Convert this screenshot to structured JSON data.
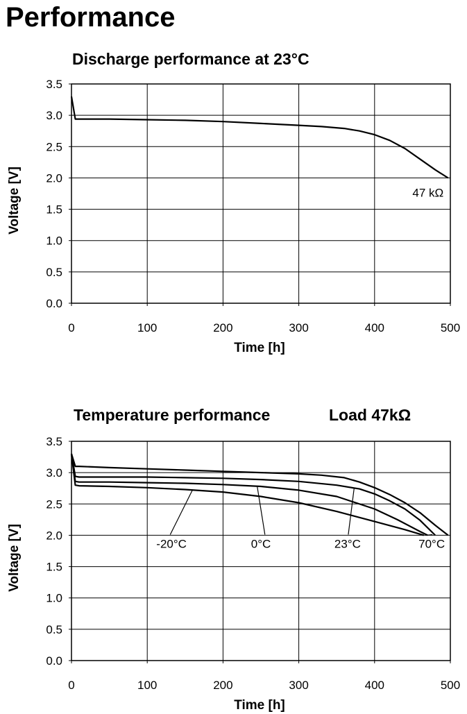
{
  "page": {
    "title": "Performance"
  },
  "chart_data": [
    {
      "type": "line",
      "title": "Discharge performance at 23°C",
      "xlabel": "Time [h]",
      "ylabel": "Voltage [V]",
      "xlim": [
        0,
        500
      ],
      "ylim": [
        0,
        3.5
      ],
      "xticks": [
        "0",
        "100",
        "200",
        "300",
        "400",
        "500"
      ],
      "yticks": [
        "0.0",
        "0.5",
        "1.0",
        "1.5",
        "2.0",
        "2.5",
        "3.0",
        "3.5"
      ],
      "grid": true,
      "series": [
        {
          "name": "47 kΩ",
          "x": [
            0,
            5,
            10,
            50,
            100,
            150,
            200,
            250,
            300,
            330,
            360,
            380,
            400,
            420,
            440,
            460,
            480,
            497
          ],
          "y": [
            3.3,
            2.94,
            2.94,
            2.94,
            2.93,
            2.92,
            2.9,
            2.87,
            2.84,
            2.82,
            2.79,
            2.75,
            2.69,
            2.6,
            2.47,
            2.3,
            2.13,
            2.0
          ]
        }
      ],
      "annotations": [
        {
          "text": "47 kΩ",
          "x": 450,
          "y": 1.7
        }
      ]
    },
    {
      "type": "line",
      "title": "Temperature performance",
      "subtitle": "Load 47kΩ",
      "xlabel": "Time [h]",
      "ylabel": "Voltage [V]",
      "xlim": [
        0,
        500
      ],
      "ylim": [
        0,
        3.5
      ],
      "xticks": [
        "0",
        "100",
        "200",
        "300",
        "400",
        "500"
      ],
      "yticks": [
        "0.0",
        "0.5",
        "1.0",
        "1.5",
        "2.0",
        "2.5",
        "3.0",
        "3.5"
      ],
      "grid": true,
      "series": [
        {
          "name": "-20°C",
          "x": [
            0,
            5,
            10,
            50,
            100,
            150,
            200,
            250,
            300,
            350,
            400,
            440,
            465
          ],
          "y": [
            3.3,
            2.8,
            2.79,
            2.78,
            2.76,
            2.73,
            2.69,
            2.62,
            2.52,
            2.38,
            2.22,
            2.09,
            2.0
          ]
        },
        {
          "name": "0°C",
          "x": [
            0,
            5,
            10,
            50,
            100,
            150,
            200,
            250,
            300,
            350,
            400,
            430,
            460,
            470
          ],
          "y": [
            3.3,
            2.86,
            2.85,
            2.85,
            2.84,
            2.83,
            2.81,
            2.78,
            2.72,
            2.62,
            2.42,
            2.25,
            2.06,
            2.0
          ]
        },
        {
          "name": "23°C",
          "x": [
            0,
            5,
            10,
            50,
            100,
            150,
            200,
            250,
            300,
            350,
            380,
            400,
            420,
            440,
            460,
            480
          ],
          "y": [
            3.3,
            2.94,
            2.93,
            2.93,
            2.93,
            2.92,
            2.91,
            2.89,
            2.86,
            2.8,
            2.74,
            2.66,
            2.55,
            2.42,
            2.24,
            2.0
          ]
        },
        {
          "name": "70°C",
          "x": [
            0,
            5,
            10,
            50,
            100,
            150,
            200,
            250,
            300,
            330,
            360,
            380,
            400,
            420,
            440,
            460,
            480,
            497
          ],
          "y": [
            3.3,
            3.1,
            3.1,
            3.08,
            3.06,
            3.04,
            3.02,
            3.0,
            2.98,
            2.96,
            2.92,
            2.85,
            2.76,
            2.65,
            2.52,
            2.36,
            2.16,
            2.0
          ]
        }
      ],
      "annotations": [
        {
          "text": "-20°C",
          "x": 112,
          "y": 1.8,
          "target": [
            160,
            2.73
          ]
        },
        {
          "text": "0°C",
          "x": 237,
          "y": 1.8,
          "target": [
            245,
            2.79
          ]
        },
        {
          "text": "23°C",
          "x": 347,
          "y": 1.8,
          "target": [
            373,
            2.75
          ]
        },
        {
          "text": "70°C",
          "x": 458,
          "y": 1.8,
          "target": [
            467,
            2.0
          ]
        }
      ]
    }
  ]
}
